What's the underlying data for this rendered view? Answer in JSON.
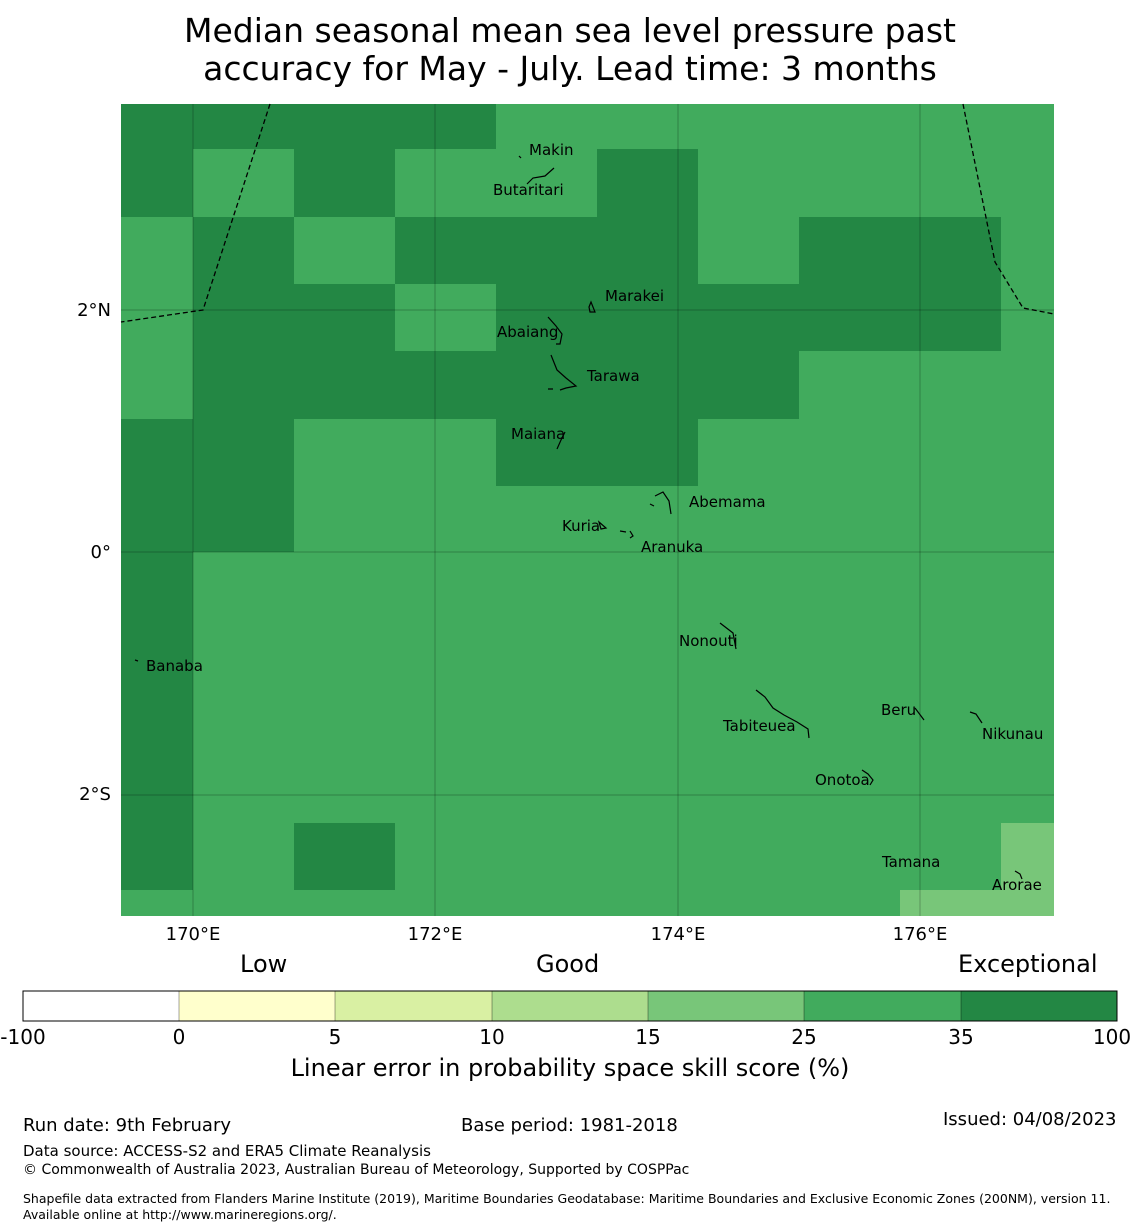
{
  "title_line1": "Median seasonal mean sea level pressure past",
  "title_line2": "accuracy for May - July. Lead time: 3 months",
  "colors": {
    "exceptional": "#238744",
    "good_35": "#41ab5d",
    "good_25": "#78c679",
    "band_10_15": "#addd8e",
    "band_5_10": "#d9f0a3",
    "band_0_5": "#ffffcc",
    "low": "#ffffff"
  },
  "axes": {
    "lon_labels": [
      "170°E",
      "172°E",
      "174°E",
      "176°E"
    ],
    "lat_labels": [
      "2°N",
      "0°",
      "2°S"
    ]
  },
  "places": [
    "Makin",
    "Butaritari",
    "Marakei",
    "Abaiang",
    "Tarawa",
    "Maiana",
    "Abemama",
    "Kuria",
    "Aranuka",
    "Banaba",
    "Nonouti",
    "Tabiteuea",
    "Beru",
    "Nikunau",
    "Onotoa",
    "Tamana",
    "Arorae"
  ],
  "legend": {
    "categories": [
      "Low",
      "Good",
      "Exceptional"
    ],
    "ticks": [
      "-100",
      "0",
      "5",
      "10",
      "15",
      "25",
      "35",
      "100"
    ],
    "title": "Linear error in probability space skill score (%)"
  },
  "footer": {
    "run_date": "Run date: 9th February",
    "base_period": "Base period: 1981-2018",
    "issued": "Issued: 04/08/2023",
    "data_source": "Data source: ACCESS-S2 and ERA5 Climate Reanalysis",
    "copyright": "© Commonwealth of Australia 2023, Australian Bureau of Meteorology, Supported by COSPPac",
    "shapefile": "Shapefile data extracted from Flanders Marine Institute (2019), Maritime Boundaries Geodatabase: Maritime Boundaries and Exclusive Economic Zones (200NM), version 11. Available online at http://www.marineregions.org/."
  }
}
